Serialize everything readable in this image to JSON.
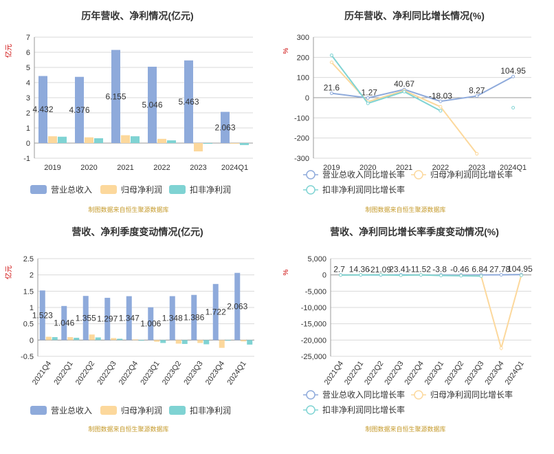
{
  "source_note": "制图数据来自恒生聚源数据库",
  "colors": {
    "revenue": "#8eaadb",
    "net_profit": "#fcd89c",
    "deducted_profit": "#7fd3d3",
    "line_revenue": "#8eaadb",
    "line_net_profit": "#fcd89c",
    "line_deducted": "#7fd3d3",
    "grid": "#d9d9d9",
    "axis_text": "#333333",
    "unit_red": "#cc0000",
    "source_text": "#c59a2b"
  },
  "chart_data": [
    {
      "id": "annual_bar",
      "type": "bar",
      "title": "历年营收、净利情况(亿元)",
      "ylabel": "亿元",
      "ylim": [
        -1,
        7
      ],
      "yticks": [
        -1,
        0,
        1,
        2,
        3,
        4,
        5,
        6,
        7
      ],
      "categories": [
        "2019",
        "2020",
        "2021",
        "2022",
        "2023",
        "2024Q1"
      ],
      "series": [
        {
          "name": "营业总收入",
          "values": [
            4.432,
            4.376,
            6.155,
            5.046,
            5.463,
            2.063
          ],
          "labels": [
            "4.432",
            "4.376",
            "6.155",
            "5.046",
            "5.463",
            "2.063"
          ]
        },
        {
          "name": "归母净利润",
          "values": [
            0.45,
            0.38,
            0.52,
            0.28,
            -0.55,
            -0.04
          ]
        },
        {
          "name": "扣非净利润",
          "values": [
            0.42,
            0.32,
            0.45,
            0.18,
            -0.02,
            -0.13
          ]
        }
      ],
      "grid": true,
      "legend": "bottom-left"
    },
    {
      "id": "annual_line",
      "type": "line",
      "title": "历年营收、净利同比增长情况(%)",
      "ylabel": "%",
      "ylim": [
        -300,
        300
      ],
      "yticks": [
        -300,
        -200,
        -100,
        0,
        100,
        200,
        300
      ],
      "categories": [
        "2019",
        "2020",
        "2021",
        "2022",
        "2023",
        "2024Q1"
      ],
      "series": [
        {
          "name": "营业总收入同比增长率",
          "values": [
            21.6,
            -1.27,
            40.67,
            -18.03,
            8.27,
            104.95
          ],
          "labels": [
            "21.6",
            "-1.27",
            "40.67",
            "-18.03",
            "8.27",
            "104.95"
          ]
        },
        {
          "name": "归母净利润同比增长率",
          "values": [
            175,
            -20,
            35,
            -45,
            -278,
            null
          ]
        },
        {
          "name": "扣非净利润同比增长率",
          "values": [
            210,
            -28,
            30,
            -65,
            null,
            -50
          ]
        }
      ],
      "grid": true,
      "legend": "bottom"
    },
    {
      "id": "quarter_bar",
      "type": "bar",
      "title": "营收、净利季度变动情况(亿元)",
      "ylabel": "亿元",
      "ylim": [
        -0.5,
        2.5
      ],
      "yticks": [
        -0.5,
        0,
        0.5,
        1,
        1.5,
        2,
        2.5
      ],
      "categories": [
        "2021Q4",
        "2022Q1",
        "2022Q2",
        "2022Q3",
        "2022Q4",
        "2023Q1",
        "2023Q2",
        "2023Q3",
        "2023Q4",
        "2024Q1"
      ],
      "series": [
        {
          "name": "营业总收入",
          "values": [
            1.523,
            1.046,
            1.355,
            1.297,
            1.347,
            1.006,
            1.348,
            1.386,
            1.722,
            2.063
          ],
          "labels": [
            "1.523",
            "1.046",
            "1.355",
            "1.297",
            "1.347",
            "1.006",
            "1.348",
            "1.386",
            "1.722",
            "2.063"
          ]
        },
        {
          "name": "归母净利润",
          "values": [
            0.1,
            0.09,
            0.17,
            0.06,
            0.02,
            -0.05,
            -0.11,
            -0.09,
            -0.24,
            -0.04
          ]
        },
        {
          "name": "扣非净利润",
          "values": [
            0.09,
            0.07,
            0.08,
            0.04,
            -0.01,
            -0.09,
            -0.12,
            -0.13,
            -0.01,
            -0.14
          ]
        }
      ],
      "grid": true,
      "legend": "bottom-left"
    },
    {
      "id": "quarter_line",
      "type": "line",
      "title": "营收、净利同比增长率季度变动情况(%)",
      "ylabel": "%",
      "ylim": [
        -25000,
        5000
      ],
      "yticks": [
        -25000,
        -20000,
        -15000,
        -10000,
        -5000,
        0,
        5000
      ],
      "categories": [
        "2021Q4",
        "2022Q1",
        "2022Q2",
        "2022Q3",
        "2022Q4",
        "2023Q1",
        "2023Q2",
        "2023Q3",
        "2023Q4",
        "2024Q1"
      ],
      "series": [
        {
          "name": "营业总收入同比增长率",
          "values": [
            2.7,
            14.36,
            -21.09,
            23.41,
            -11.52,
            -3.8,
            -0.46,
            6.84,
            27.78,
            104.95
          ],
          "labels": [
            "2.7",
            "14.36",
            "-21.09",
            "23.41",
            "-11.52",
            "-3.8",
            "-0.46",
            "6.84",
            "27.78",
            "104.95"
          ]
        },
        {
          "name": "归母净利润同比增长率",
          "values": [
            -50,
            30,
            60,
            -120,
            20,
            -150,
            -200,
            -300,
            -22500,
            -60
          ]
        },
        {
          "name": "扣非净利润同比增长率",
          "values": [
            -40,
            20,
            40,
            -100,
            10,
            -180,
            -250,
            -350,
            null,
            -120
          ]
        }
      ],
      "grid": true,
      "legend": "bottom"
    }
  ]
}
